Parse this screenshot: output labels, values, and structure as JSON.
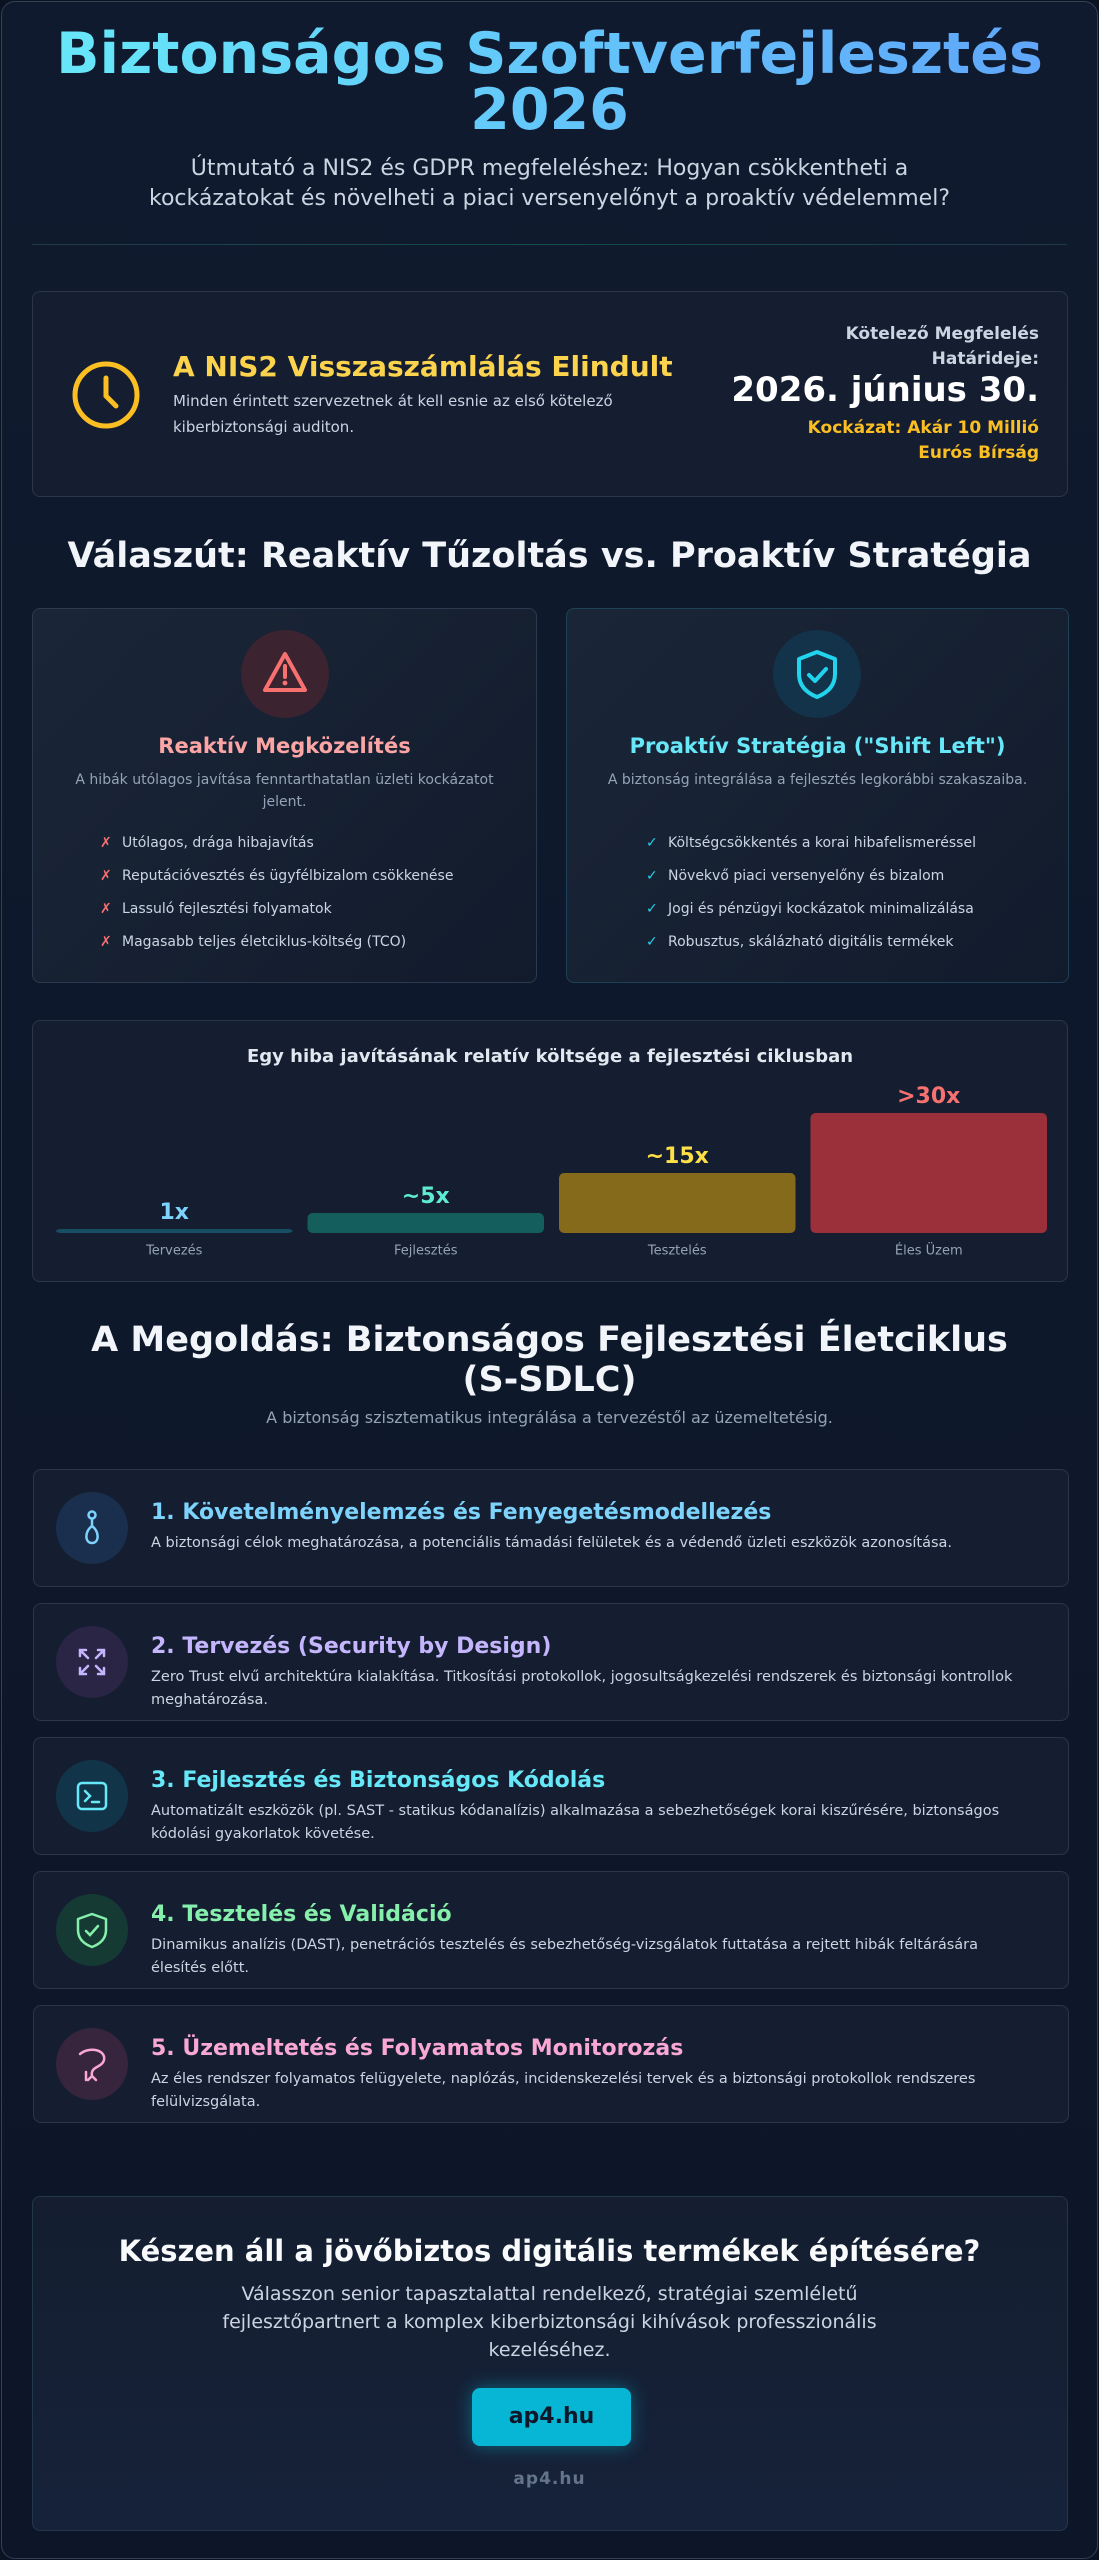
{
  "header": {
    "title": "Biztonságos Szoftverfejlesztés 2026",
    "subtitle": "Útmutató a NIS2 és GDPR megfeleléshez: Hogyan csökkentheti a kockázatokat és növelheti a piaci versenyelőnyt a proaktív védelemmel?"
  },
  "alert": {
    "title": "A NIS2 Visszaszámlálás Elindult",
    "text": "Minden érintett szervezetnek át kell esnie az első kötelező kiberbiztonsági auditon.",
    "deadline_label": "Kötelező Megfelelés Határideje:",
    "deadline": "2026. június 30.",
    "risk": "Kockázat: Akár 10 Millió Eurós Bírság"
  },
  "comparison": {
    "heading": "Válaszút: Reaktív Tűzoltás vs. Proaktív Stratégia",
    "reactive": {
      "title": "Reaktív Megközelítés",
      "text": "A hibák utólagos javítása fenntarthatatlan üzleti kockázatot jelent.",
      "items": [
        "Utólagos, drága hibajavítás",
        "Reputációvesztés és ügyfélbizalom csökkenése",
        "Lassuló fejlesztési folyamatok",
        "Magasabb teljes életciklus-költség (TCO)"
      ]
    },
    "proactive": {
      "title": "Proaktív Stratégia (\"Shift Left\")",
      "text": "A biztonság integrálása a fejlesztés legkorábbi szakaszaiba.",
      "items": [
        "Költségcsökkentés a korai hibafelismeréssel",
        "Növekvő piaci versenyelőny és bizalom",
        "Jogi és pénzügyi kockázatok minimalizálása",
        "Robusztus, skálázható digitális termékek"
      ]
    }
  },
  "chart_data": {
    "type": "bar",
    "title": "Egy hiba javításának relatív költsége a fejlesztési ciklusban",
    "categories": [
      "Tervezés",
      "Fejlesztés",
      "Tesztelés",
      "Éles Üzem"
    ],
    "values": [
      1,
      5,
      15,
      30
    ],
    "value_labels": [
      "1x",
      "~5x",
      "~15x",
      ">30x"
    ],
    "colors": [
      "#164e63",
      "#155e5e",
      "#856a1c",
      "#9b2f3a"
    ],
    "label_colors": [
      "#7dd3fc",
      "#5eead4",
      "#fde047",
      "#f87171"
    ]
  },
  "solution": {
    "heading": "A Megoldás: Biztonságos Fejlesztési Életciklus (S-SDLC)",
    "subtitle": "A biztonság szisztematikus integrálása a tervezéstől az üzemeltetésig.",
    "steps": [
      {
        "title": "1. Követelményelemzés és Fenyegetésmodellezés",
        "text": "A biztonsági célok meghatározása, a potenciális támadási felületek és a védendő üzleti eszközök azonosítása."
      },
      {
        "title": "2. Tervezés (Security by Design)",
        "text": "Zero Trust elvű architektúra kialakítása. Titkosítási protokollok, jogosultságkezelési rendszerek és biztonsági kontrollok meghatározása."
      },
      {
        "title": "3. Fejlesztés és Biztonságos Kódolás",
        "text": "Automatizált eszközök (pl. SAST - statikus kódanalízis) alkalmazása a sebezhetőségek korai kiszűrésére, biztonságos kódolási gyakorlatok követése."
      },
      {
        "title": "4. Tesztelés és Validáció",
        "text": "Dinamikus analízis (DAST), penetrációs tesztelés és sebezhetőség-vizsgálatok futtatása a rejtett hibák feltárására élesítés előtt."
      },
      {
        "title": "5. Üzemeltetés és Folyamatos Monitorozás",
        "text": "Az éles rendszer folyamatos felügyelete, naplózás, incidenskezelési tervek és a biztonsági protokollok rendszeres felülvizsgálata."
      }
    ]
  },
  "cta": {
    "title": "Készen áll a jövőbiztos digitális termékek építésére?",
    "text": "Válasszon senior tapasztalattal rendelkező, stratégiai szemléletű fejlesztőpartnert a komplex kiberbiztonsági kihívások professzionális kezeléséhez.",
    "button": "ap4.hu",
    "footer": "ap4.hu"
  }
}
